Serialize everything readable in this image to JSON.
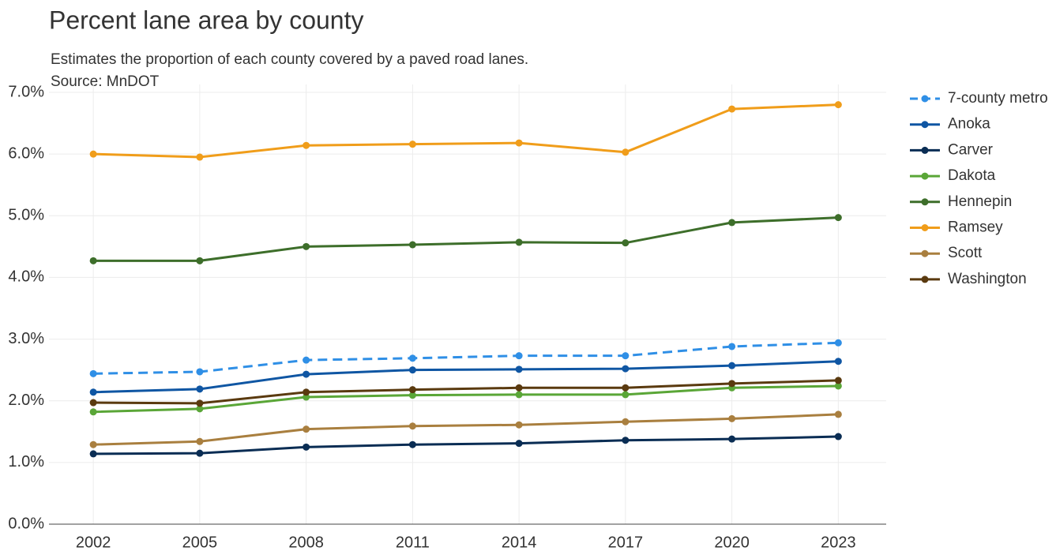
{
  "chart_data": {
    "type": "line",
    "title": "Percent lane area by county",
    "subtitle": "Estimates the proportion of each county covered by a paved road lanes.",
    "source": "Source: MnDOT",
    "x": [
      2002,
      2005,
      2008,
      2011,
      2014,
      2017,
      2020,
      2023
    ],
    "xlim": [
      2000.75,
      2024.35
    ],
    "xticks": [
      2002,
      2005,
      2008,
      2011,
      2014,
      2017,
      2020,
      2023
    ],
    "ylim": [
      0,
      7
    ],
    "yticks": [
      {
        "value": 0,
        "label": "0.0%"
      },
      {
        "value": 1,
        "label": "1.0%"
      },
      {
        "value": 2,
        "label": "2.0%"
      },
      {
        "value": 3,
        "label": "3.0%"
      },
      {
        "value": 4,
        "label": "4.0%"
      },
      {
        "value": 5,
        "label": "5.0%"
      },
      {
        "value": 6,
        "label": "6.0%"
      },
      {
        "value": 7,
        "label": "7.0%"
      }
    ],
    "grid": true,
    "legend": "right",
    "series": [
      {
        "name": "7-county metro",
        "color": "#2f8fe6",
        "dashed": true,
        "values": [
          2.44,
          2.47,
          2.66,
          2.69,
          2.73,
          2.73,
          2.88,
          2.94
        ]
      },
      {
        "name": "Anoka",
        "color": "#0f56a3",
        "values": [
          2.14,
          2.19,
          2.43,
          2.5,
          2.51,
          2.52,
          2.57,
          2.64
        ]
      },
      {
        "name": "Carver",
        "color": "#0a2d54",
        "values": [
          1.14,
          1.15,
          1.25,
          1.29,
          1.31,
          1.36,
          1.38,
          1.42
        ]
      },
      {
        "name": "Dakota",
        "color": "#5aa637",
        "values": [
          1.82,
          1.87,
          2.06,
          2.09,
          2.1,
          2.1,
          2.21,
          2.24
        ]
      },
      {
        "name": "Hennepin",
        "color": "#3d6e2a",
        "values": [
          4.27,
          4.27,
          4.5,
          4.53,
          4.57,
          4.56,
          4.89,
          4.97
        ]
      },
      {
        "name": "Ramsey",
        "color": "#f09d1a",
        "values": [
          6.0,
          5.95,
          6.14,
          6.16,
          6.18,
          6.03,
          6.73,
          6.8
        ]
      },
      {
        "name": "Scott",
        "color": "#a97f3f",
        "values": [
          1.29,
          1.34,
          1.54,
          1.59,
          1.61,
          1.66,
          1.71,
          1.78
        ]
      },
      {
        "name": "Washington",
        "color": "#5a3a0f",
        "values": [
          1.97,
          1.96,
          2.14,
          2.18,
          2.21,
          2.21,
          2.28,
          2.33
        ]
      }
    ]
  }
}
